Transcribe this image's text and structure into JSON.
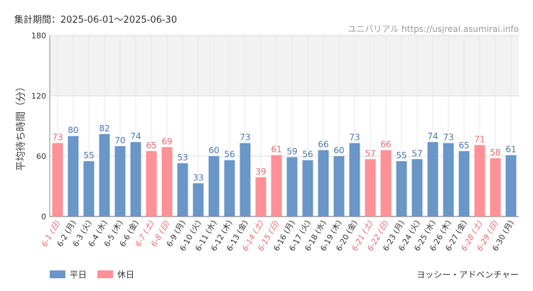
{
  "header": {
    "period_label": "集計期間：2025-06-01～2025-06-30",
    "site_label": "ユニバリアル  https://usjreal.asumirai.info"
  },
  "legend": {
    "weekday": "平日",
    "holiday": "休日"
  },
  "footer": {
    "author": "ヨッシー・アドベンチャー"
  },
  "colors": {
    "weekday": "#6a96c8",
    "holiday": "#ff9096",
    "weekday_label": "#4a77ad",
    "holiday_label": "#ec6a70",
    "holiday_tick": "#ec6a70",
    "band": "#f2f2f2"
  },
  "chart_data": {
    "type": "bar",
    "ylabel": "平均待ち時間（分）",
    "xlabel": "",
    "ylim": [
      0,
      180
    ],
    "yticks": [
      0,
      60,
      120,
      180
    ],
    "shaded_band": [
      120,
      180
    ],
    "grid": true,
    "legend_position": "bottom-left",
    "categories": [
      "6-1 (日)",
      "6-2 (月)",
      "6-3 (火)",
      "6-4 (水)",
      "6-5 (木)",
      "6-6 (金)",
      "6-7 (土)",
      "6-8 (日)",
      "6-9 (月)",
      "6-10 (火)",
      "6-11 (水)",
      "6-12 (木)",
      "6-13 (金)",
      "6-14 (土)",
      "6-15 (日)",
      "6-16 (月)",
      "6-17 (火)",
      "6-18 (水)",
      "6-19 (木)",
      "6-20 (金)",
      "6-21 (土)",
      "6-22 (日)",
      "6-23 (月)",
      "6-24 (火)",
      "6-25 (水)",
      "6-26 (木)",
      "6-27 (金)",
      "6-28 (土)",
      "6-29 (日)",
      "6-30 (月)"
    ],
    "values": [
      73,
      80,
      55,
      82,
      70,
      74,
      65,
      69,
      53,
      33,
      60,
      56,
      73,
      39,
      61,
      59,
      56,
      66,
      60,
      73,
      57,
      66,
      55,
      57,
      74,
      73,
      65,
      71,
      58,
      61
    ],
    "day_type": [
      "休日",
      "平日",
      "平日",
      "平日",
      "平日",
      "平日",
      "休日",
      "休日",
      "平日",
      "平日",
      "平日",
      "平日",
      "平日",
      "休日",
      "休日",
      "平日",
      "平日",
      "平日",
      "平日",
      "平日",
      "休日",
      "休日",
      "平日",
      "平日",
      "平日",
      "平日",
      "平日",
      "休日",
      "休日",
      "平日"
    ]
  }
}
